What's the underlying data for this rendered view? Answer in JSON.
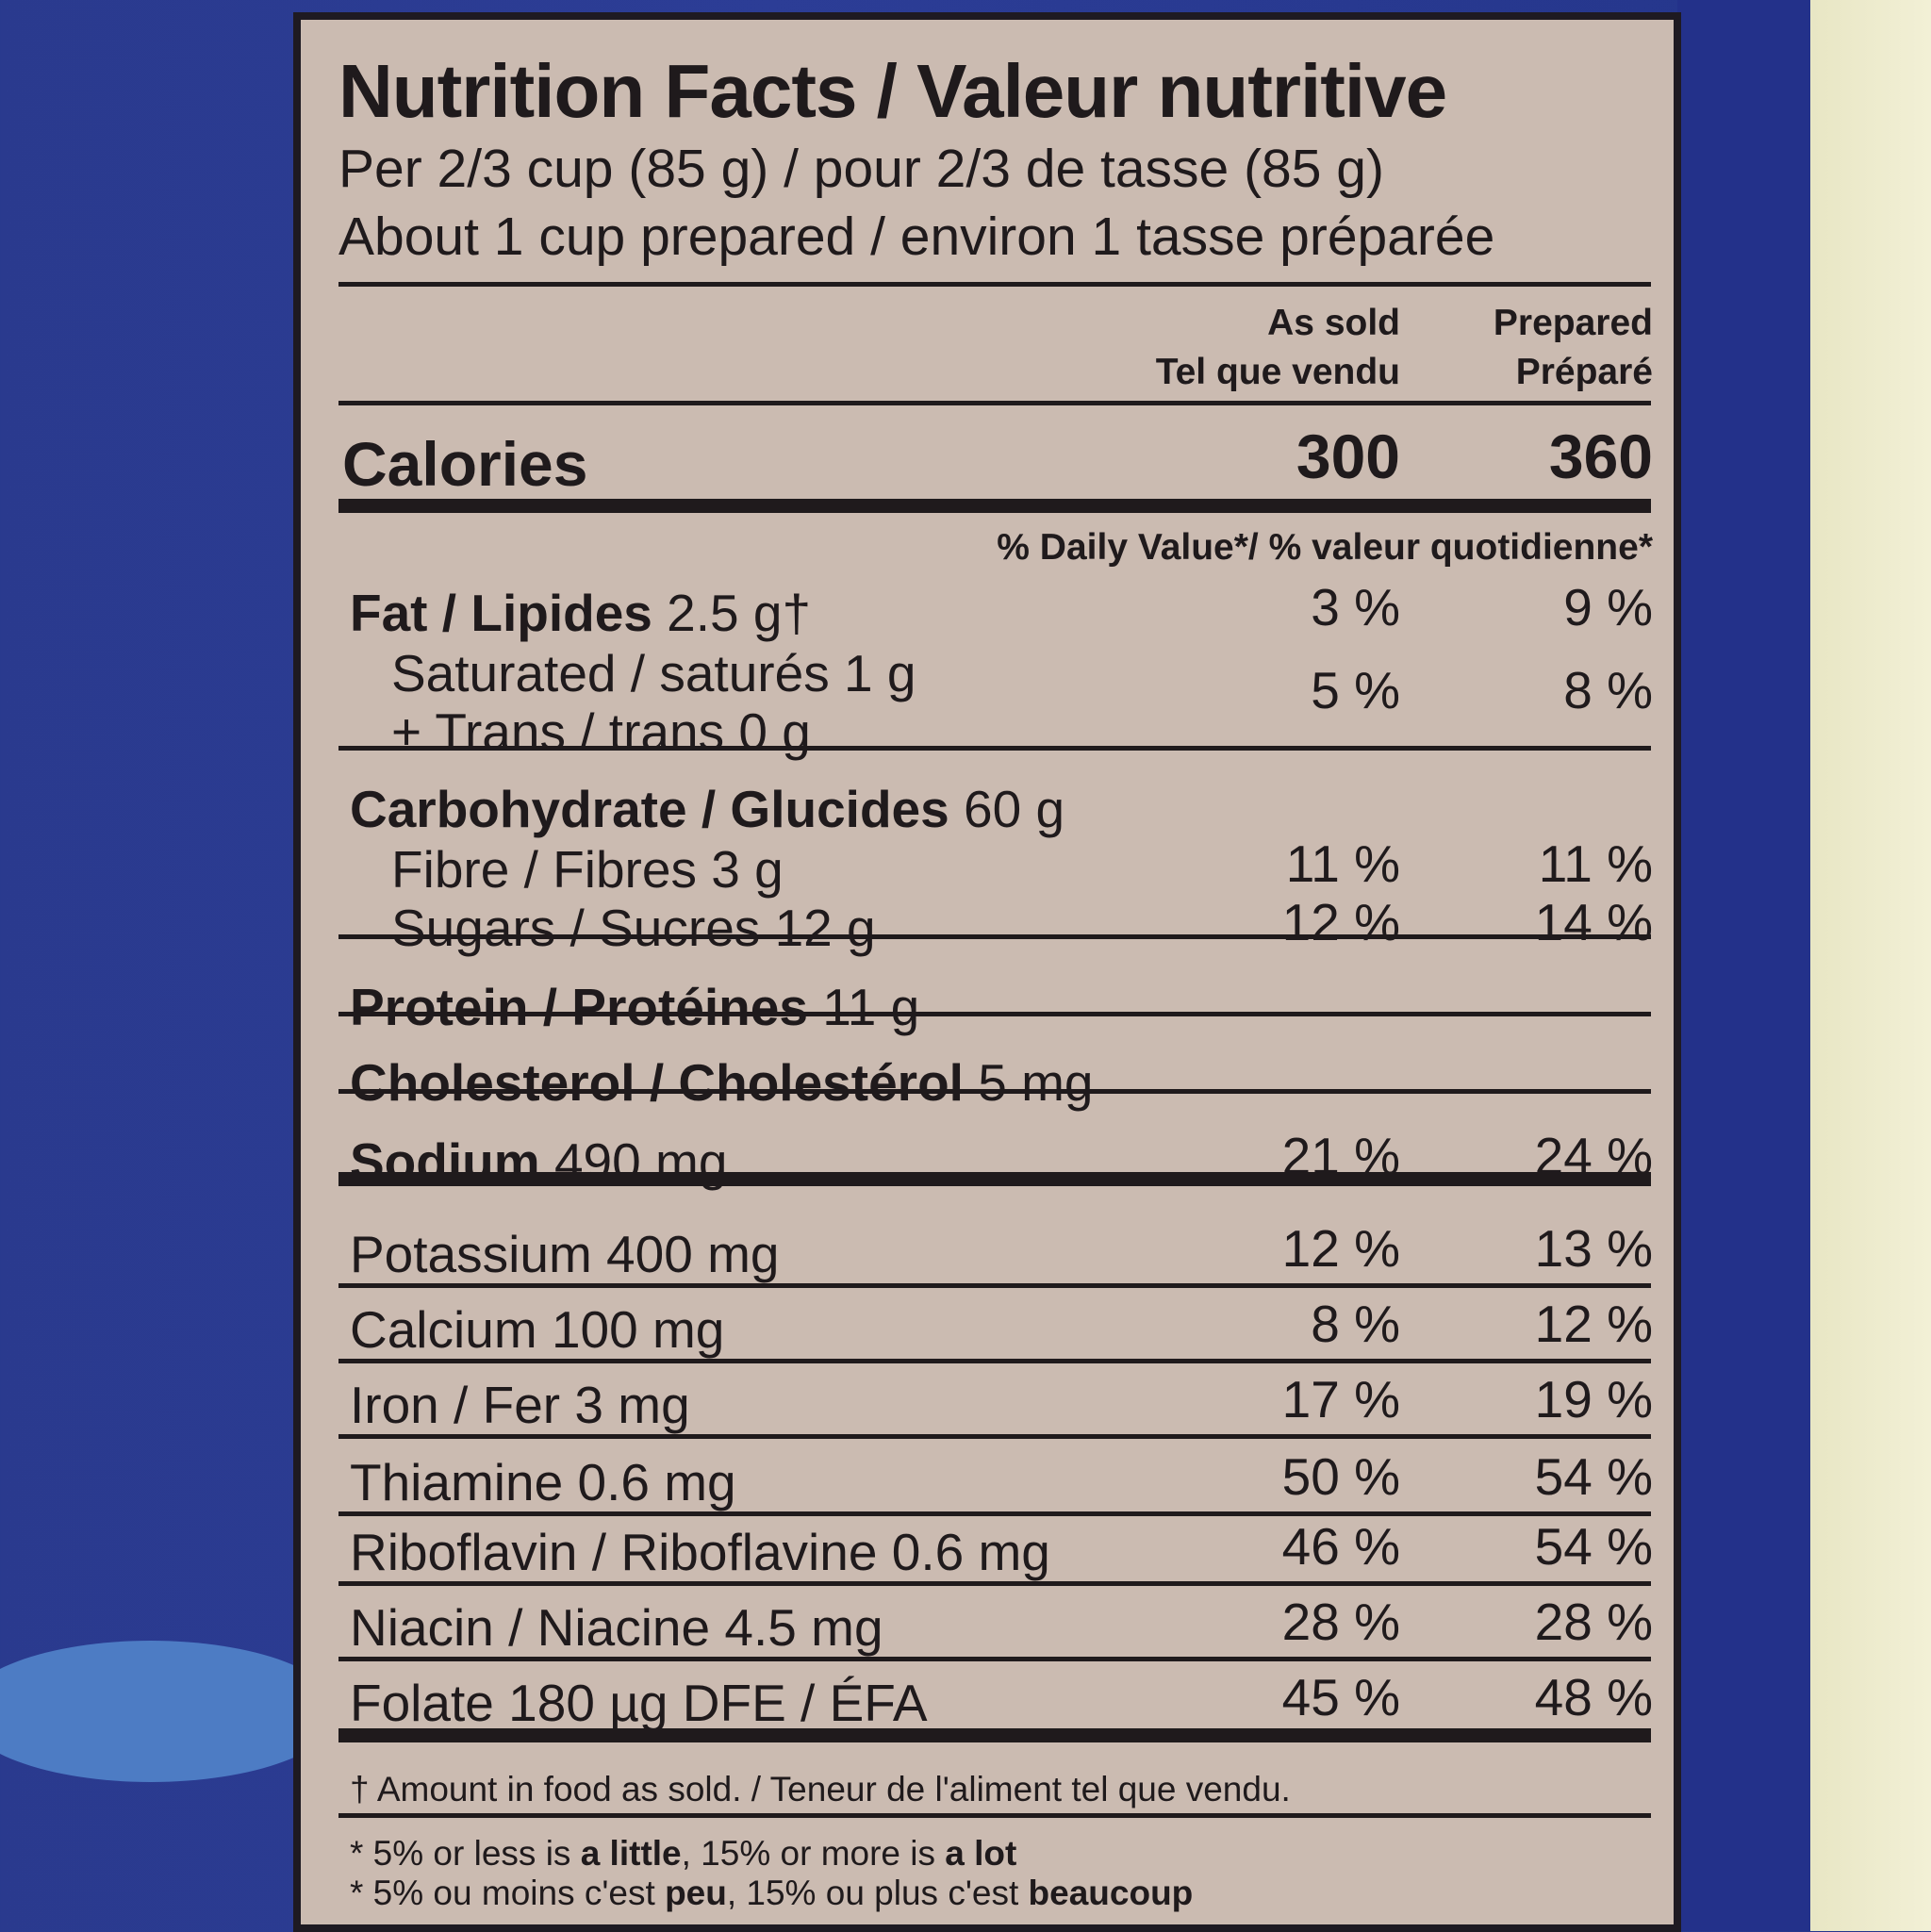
{
  "title": "Nutrition Facts / Valeur nutritive",
  "serving": [
    "Per 2/3 cup (85 g) / pour 2/3 de tasse (85 g)",
    "About 1 cup prepared / environ 1 tasse préparée"
  ],
  "columns": {
    "sold_en": "As sold",
    "sold_fr": "Tel que vendu",
    "prep_en": "Prepared",
    "prep_fr": "Préparé"
  },
  "calories": {
    "label": "Calories",
    "sold": "300",
    "prepared": "360"
  },
  "dv_header": "% Daily Value*/ % valeur quotidienne*",
  "nutrients": [
    {
      "label": "Fat / Lipides",
      "amount": "2.5 g†",
      "sold": "3 %",
      "prepared": "9 %"
    },
    {
      "label": "Saturated / saturés",
      "amount": "1 g",
      "sold": "5 %",
      "prepared": "8 %"
    },
    {
      "label": "+ Trans / trans",
      "amount": "0 g"
    },
    {
      "label": "Carbohydrate / Glucides",
      "amount": "60 g"
    },
    {
      "label": "Fibre / Fibres",
      "amount": "3 g",
      "sold": "11 %",
      "prepared": "11 %"
    },
    {
      "label": "Sugars / Sucres",
      "amount": "12 g",
      "sold": "12 %",
      "prepared": "14 %"
    },
    {
      "label": "Protein / Protéines",
      "amount": "11 g"
    },
    {
      "label": "Cholesterol / Cholestérol",
      "amount": "5 mg"
    },
    {
      "label": "Sodium",
      "amount": "490 mg",
      "sold": "21 %",
      "prepared": "24 %"
    },
    {
      "label": "Potassium",
      "amount": "400 mg",
      "sold": "12 %",
      "prepared": "13 %"
    },
    {
      "label": "Calcium",
      "amount": "100 mg",
      "sold": "8 %",
      "prepared": "12 %"
    },
    {
      "label": "Iron / Fer",
      "amount": "3 mg",
      "sold": "17 %",
      "prepared": "19 %"
    },
    {
      "label": "Thiamine",
      "amount": "0.6 mg",
      "sold": "50 %",
      "prepared": "54 %"
    },
    {
      "label": "Riboflavin / Riboflavine",
      "amount": "0.6 mg",
      "sold": "46 %",
      "prepared": "54 %"
    },
    {
      "label": "Niacin / Niacine",
      "amount": "4.5 mg",
      "sold": "28 %",
      "prepared": "28 %"
    },
    {
      "label": "Folate",
      "amount": "180 µg DFE / ÉFA",
      "sold": "45 %",
      "prepared": "48 %"
    }
  ],
  "footnotes": {
    "dagger": "† Amount in food as sold. / Teneur de l'aliment tel que vendu.",
    "en": {
      "a": "* 5% or less is ",
      "b": "a little",
      "c": ", 15% or more is ",
      "d": "a lot"
    },
    "fr": {
      "a": "* 5% ou moins c'est ",
      "b": "peu",
      "c": ", 15% ou plus c'est ",
      "d": "beaucoup"
    }
  }
}
